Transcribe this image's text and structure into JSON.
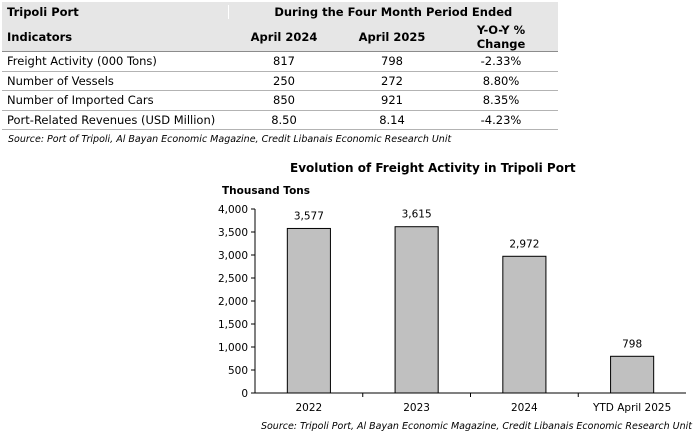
{
  "table": {
    "corner_label": "Tripoli Port",
    "period_label": "During the Four Month Period Ended",
    "headers": {
      "indicators": "Indicators",
      "col1": "April 2024",
      "col2": "April 2025",
      "col3_line1": "Y-O-Y %",
      "col3_line2": "Change"
    },
    "rows": [
      {
        "indicator": "Freight Activity (000 Tons)",
        "v2024": "817",
        "v2025": "798",
        "change": "-2.33%"
      },
      {
        "indicator": "Number of Vessels",
        "v2024": "250",
        "v2025": "272",
        "change": "8.80%"
      },
      {
        "indicator": "Number of Imported Cars",
        "v2024": "850",
        "v2025": "921",
        "change": "8.35%"
      },
      {
        "indicator": "Port-Related Revenues (USD Million)",
        "v2024": "8.50",
        "v2025": "8.14",
        "change": "-4.23%"
      }
    ],
    "source": "Source: Port of Tripoli, Al Bayan Economic Magazine, Credit Libanais Economic Research Unit"
  },
  "chart_data": {
    "type": "bar",
    "title": "Evolution of Freight Activity in Tripoli Port",
    "ylabel": "Thousand Tons",
    "categories": [
      "2022",
      "2023",
      "2024",
      "YTD April 2025"
    ],
    "values": [
      3577,
      3615,
      2972,
      798
    ],
    "data_labels": [
      "3,577",
      "3,615",
      "2,972",
      "798"
    ],
    "ylim": [
      0,
      4000
    ],
    "yticks": [
      0,
      500,
      1000,
      1500,
      2000,
      2500,
      3000,
      3500,
      4000
    ],
    "ytick_labels": [
      "0",
      "500",
      "1,000",
      "1,500",
      "2,000",
      "2,500",
      "3,000",
      "3,500",
      "4,000"
    ],
    "grid": false,
    "bar_color": "#c0c0c0",
    "bar_stroke": "#000000",
    "source": "Source: Tripoli Port, Al Bayan Economic Magazine, Credit Libanais Economic Research Unit"
  }
}
